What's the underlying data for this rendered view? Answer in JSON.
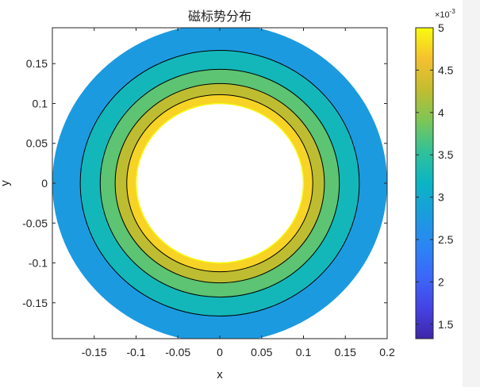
{
  "chart_data": {
    "type": "contour",
    "title": "磁标势分布",
    "xlabel": "x",
    "ylabel": "y",
    "xlim": [
      -0.2,
      0.2
    ],
    "ylim": [
      -0.195,
      0.195
    ],
    "x_ticks": [
      "-0.15",
      "-0.1",
      "-0.05",
      "0",
      "0.05",
      "0.1",
      "0.15",
      "0.2"
    ],
    "y_ticks": [
      "0.15",
      "0.1",
      "0.05",
      "0",
      "-0.05",
      "-0.1",
      "-0.15"
    ],
    "inner_radius": 0.1,
    "outer_radius": 0.2,
    "contour_levels": [
      0.0015,
      0.002,
      0.0025,
      0.003,
      0.0035,
      0.004,
      0.0045,
      0.005
    ],
    "colorbar": {
      "exponent_label": "×10",
      "exponent": "-3",
      "range": [
        1.33,
        5.0
      ],
      "ticks": [
        "5",
        "4.5",
        "4",
        "3.5",
        "3",
        "2.5",
        "2",
        "1.5"
      ],
      "colormap": "parula"
    }
  }
}
